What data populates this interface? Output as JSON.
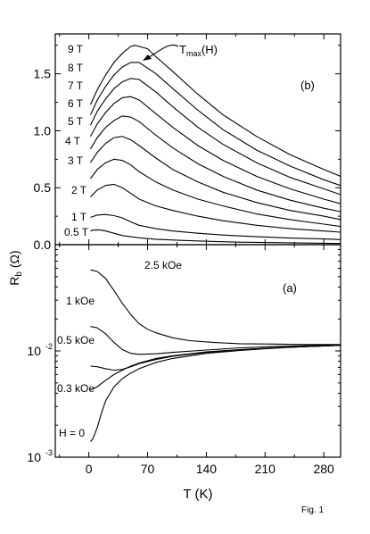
{
  "figure_label": "Fig. 1",
  "chart_data": [
    {
      "id": "b",
      "type": "line",
      "panel_label": "(b)",
      "xlabel": "T (K)",
      "ylabel": "R_b (Ω)",
      "xlim": [
        -40,
        300
      ],
      "ylim": [
        0,
        1.85
      ],
      "x_ticks": [
        0,
        70,
        140,
        210,
        280
      ],
      "y_ticks": [
        0.0,
        0.5,
        1.0,
        1.5
      ],
      "y_tick_labels": [
        "0.0",
        "0.5",
        "1.0",
        "1.5"
      ],
      "annotation": {
        "text": "T",
        "sub": "max",
        "suffix": "(H)",
        "x": 55,
        "y": 1.75
      },
      "series": [
        {
          "name": "0.5 T",
          "x": [
            2,
            5,
            10,
            15,
            20,
            30,
            40,
            60,
            80,
            110,
            140,
            180,
            220,
            260,
            300
          ],
          "y": [
            0.12,
            0.128,
            0.13,
            0.128,
            0.12,
            0.1,
            0.08,
            0.06,
            0.048,
            0.038,
            0.03,
            0.022,
            0.018,
            0.014,
            0.01
          ]
        },
        {
          "name": "1 T",
          "x": [
            2,
            10,
            20,
            30,
            40,
            50,
            60,
            80,
            100,
            130,
            160,
            200,
            240,
            280,
            300
          ],
          "y": [
            0.24,
            0.26,
            0.265,
            0.255,
            0.235,
            0.2,
            0.17,
            0.14,
            0.12,
            0.1,
            0.085,
            0.07,
            0.058,
            0.05,
            0.045
          ]
        },
        {
          "name": "2 T",
          "x": [
            2,
            10,
            20,
            30,
            40,
            50,
            60,
            80,
            100,
            130,
            160,
            200,
            240,
            280,
            300
          ],
          "y": [
            0.42,
            0.48,
            0.52,
            0.53,
            0.5,
            0.45,
            0.4,
            0.34,
            0.3,
            0.25,
            0.21,
            0.17,
            0.14,
            0.12,
            0.11
          ]
        },
        {
          "name": "3 T",
          "x": [
            2,
            10,
            20,
            30,
            40,
            50,
            60,
            80,
            100,
            130,
            160,
            200,
            240,
            280,
            300
          ],
          "y": [
            0.58,
            0.66,
            0.72,
            0.75,
            0.74,
            0.7,
            0.64,
            0.55,
            0.48,
            0.4,
            0.34,
            0.27,
            0.22,
            0.18,
            0.16
          ]
        },
        {
          "name": "4 T",
          "x": [
            2,
            10,
            20,
            30,
            40,
            50,
            60,
            80,
            100,
            130,
            160,
            200,
            240,
            280,
            300
          ],
          "y": [
            0.72,
            0.81,
            0.89,
            0.94,
            0.95,
            0.92,
            0.87,
            0.76,
            0.66,
            0.55,
            0.46,
            0.37,
            0.3,
            0.25,
            0.22
          ]
        },
        {
          "name": "5 T",
          "x": [
            2,
            10,
            20,
            30,
            40,
            50,
            60,
            80,
            100,
            130,
            160,
            200,
            240,
            280,
            300
          ],
          "y": [
            0.84,
            0.94,
            1.03,
            1.09,
            1.13,
            1.12,
            1.08,
            0.96,
            0.85,
            0.71,
            0.6,
            0.48,
            0.39,
            0.32,
            0.29
          ]
        },
        {
          "name": "6 T",
          "x": [
            2,
            10,
            20,
            30,
            40,
            50,
            60,
            80,
            100,
            130,
            160,
            200,
            240,
            280,
            300
          ],
          "y": [
            0.95,
            1.06,
            1.16,
            1.24,
            1.29,
            1.3,
            1.27,
            1.15,
            1.03,
            0.87,
            0.74,
            0.6,
            0.49,
            0.4,
            0.36
          ]
        },
        {
          "name": "7 T",
          "x": [
            2,
            10,
            20,
            30,
            40,
            50,
            60,
            80,
            100,
            130,
            160,
            200,
            240,
            280,
            300
          ],
          "y": [
            1.05,
            1.17,
            1.28,
            1.37,
            1.43,
            1.46,
            1.45,
            1.34,
            1.21,
            1.03,
            0.88,
            0.72,
            0.59,
            0.49,
            0.44
          ]
        },
        {
          "name": "8 T",
          "x": [
            2,
            10,
            20,
            30,
            40,
            50,
            60,
            80,
            100,
            130,
            160,
            200,
            240,
            280,
            300
          ],
          "y": [
            1.14,
            1.27,
            1.39,
            1.49,
            1.56,
            1.6,
            1.6,
            1.5,
            1.37,
            1.18,
            1.01,
            0.83,
            0.69,
            0.57,
            0.52
          ]
        },
        {
          "name": "9 T",
          "x": [
            2,
            10,
            20,
            30,
            40,
            50,
            55,
            60,
            70,
            80,
            100,
            130,
            160,
            200,
            240,
            280,
            300
          ],
          "y": [
            1.23,
            1.36,
            1.49,
            1.6,
            1.68,
            1.74,
            1.75,
            1.74,
            1.72,
            1.65,
            1.52,
            1.32,
            1.14,
            0.95,
            0.79,
            0.66,
            0.6
          ]
        }
      ]
    },
    {
      "id": "a",
      "type": "line",
      "panel_label": "(a)",
      "xlabel": "T (K)",
      "ylabel": "R_b (Ω)",
      "xlim": [
        -40,
        300
      ],
      "ylim": [
        0.001,
        0.1
      ],
      "yscale": "log",
      "x_ticks": [
        0,
        70,
        140,
        210,
        280
      ],
      "y_ticks": [
        0.001,
        0.01
      ],
      "y_tick_labels": [
        {
          "base": "10",
          "exp": "-3"
        },
        {
          "base": "10",
          "exp": "-2"
        }
      ],
      "series": [
        {
          "name": "2.5 kOe",
          "x": [
            2,
            10,
            20,
            30,
            40,
            50,
            60,
            70,
            80,
            100,
            120,
            150,
            180,
            220,
            260,
            300
          ],
          "y": [
            0.058,
            0.056,
            0.048,
            0.037,
            0.028,
            0.022,
            0.018,
            0.016,
            0.0148,
            0.0133,
            0.0125,
            0.012,
            0.0117,
            0.0116,
            0.0115,
            0.0115
          ]
        },
        {
          "name": "1 kOe",
          "x": [
            2,
            10,
            20,
            30,
            40,
            50,
            60,
            80,
            100,
            140,
            180,
            220,
            260,
            300
          ],
          "y": [
            0.017,
            0.0165,
            0.0145,
            0.012,
            0.0103,
            0.0095,
            0.0093,
            0.0094,
            0.0097,
            0.0102,
            0.0107,
            0.011,
            0.0112,
            0.0114
          ]
        },
        {
          "name": "0.5 kOe",
          "x": [
            2,
            10,
            20,
            30,
            40,
            50,
            60,
            80,
            100,
            140,
            180,
            220,
            260,
            300
          ],
          "y": [
            0.0072,
            0.0071,
            0.0068,
            0.0066,
            0.0067,
            0.0071,
            0.0076,
            0.0083,
            0.0089,
            0.0097,
            0.0103,
            0.0107,
            0.011,
            0.0113
          ]
        },
        {
          "name": "0.3 kOe",
          "x": [
            2,
            10,
            20,
            30,
            40,
            50,
            60,
            80,
            100,
            140,
            180,
            220,
            260,
            300
          ],
          "y": [
            0.0043,
            0.0046,
            0.0053,
            0.006,
            0.0066,
            0.0072,
            0.0077,
            0.0085,
            0.009,
            0.0098,
            0.0103,
            0.0107,
            0.011,
            0.0113
          ]
        },
        {
          "name": "H = 0",
          "x": [
            2,
            5,
            10,
            15,
            20,
            30,
            40,
            50,
            60,
            80,
            100,
            140,
            180,
            220,
            260,
            300
          ],
          "y": [
            0.0014,
            0.0015,
            0.0019,
            0.0026,
            0.0034,
            0.0046,
            0.0055,
            0.0062,
            0.0068,
            0.0078,
            0.0085,
            0.0095,
            0.0101,
            0.0106,
            0.011,
            0.0113
          ]
        }
      ]
    }
  ]
}
